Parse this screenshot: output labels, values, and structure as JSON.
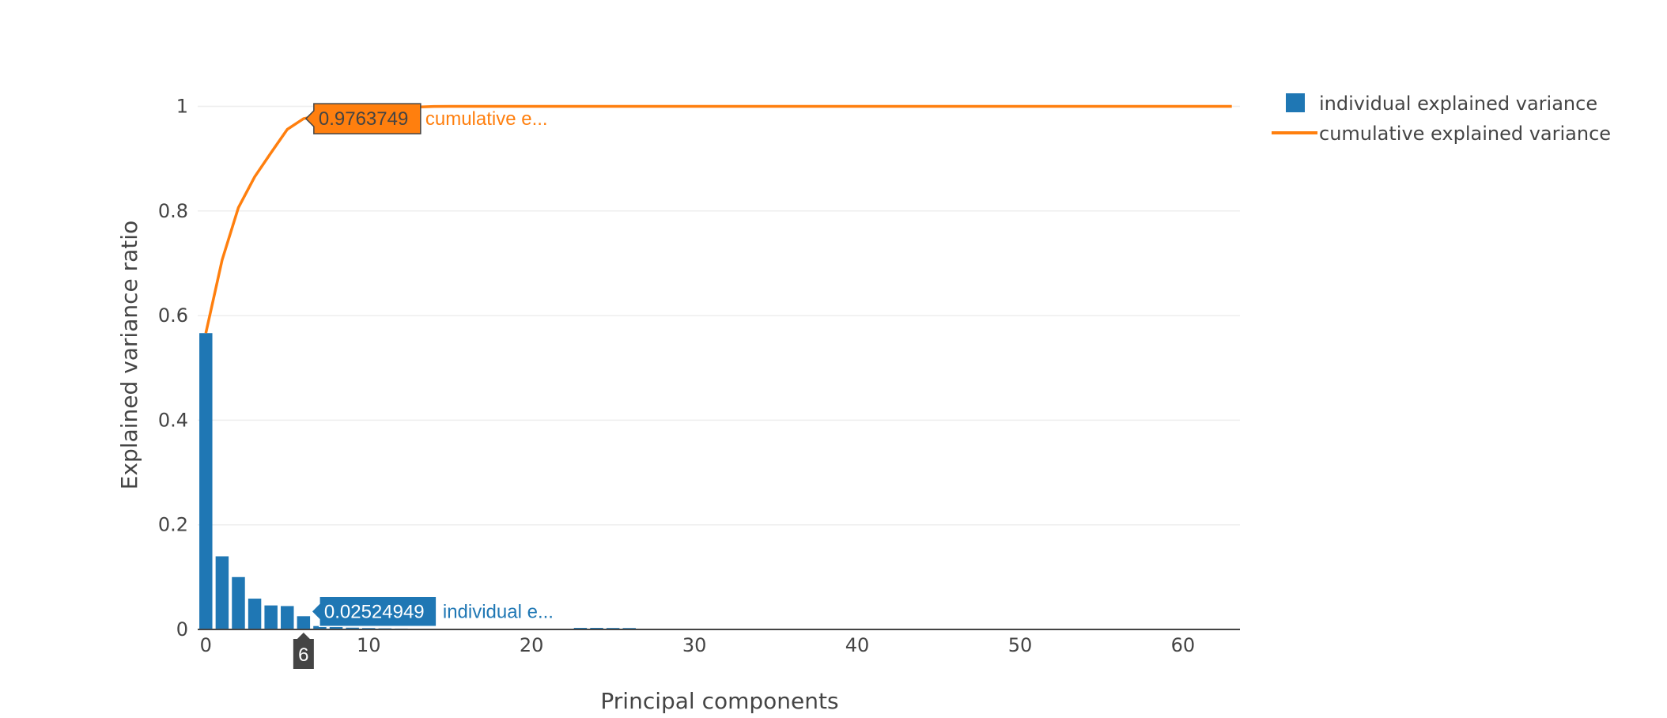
{
  "chart_data": {
    "type": "bar",
    "xlabel": "Principal components",
    "ylabel": "Explained variance ratio",
    "xlim": [
      -0.5,
      63.5
    ],
    "ylim": [
      0,
      1.04
    ],
    "x_ticks": [
      0,
      10,
      20,
      30,
      40,
      50,
      60
    ],
    "x_tick_labels": [
      "0",
      "10",
      "20",
      "30",
      "40",
      "50",
      "60"
    ],
    "y_ticks": [
      0,
      0.2,
      0.4,
      0.6,
      0.8,
      1
    ],
    "y_tick_labels": [
      "0",
      "0.2",
      "0.4",
      "0.6",
      "0.8",
      "1"
    ],
    "grid": true,
    "legend_position": "top-right",
    "colors": {
      "bar": "#1f77b4",
      "line": "#ff7f0e"
    },
    "x": [
      0,
      1,
      2,
      3,
      4,
      5,
      6,
      7,
      8,
      9,
      10,
      11,
      12,
      13,
      14,
      15,
      16,
      17,
      18,
      19,
      20,
      21,
      22,
      23,
      24,
      25,
      26,
      27,
      28,
      29,
      30,
      31,
      32,
      33,
      34,
      35,
      36,
      37,
      38,
      39,
      40,
      41,
      42,
      43,
      44,
      45,
      46,
      47,
      48,
      49,
      50,
      51,
      52,
      53,
      54,
      55,
      56,
      57,
      58,
      59,
      60,
      61,
      62,
      63
    ],
    "series": [
      {
        "name": "individual explained variance",
        "type": "bar",
        "values": [
          0.5665,
          0.1398,
          0.1001,
          0.0589,
          0.0459,
          0.0447,
          0.02524949,
          0.0065,
          0.0045,
          0.0034,
          0.0026,
          0.0021,
          0.0017,
          0.0014,
          0.0012,
          0.001,
          0.0008,
          0.0007,
          0.0006,
          0.0005,
          0.0004,
          0.0004,
          0.0003,
          0.003,
          0.003,
          0.0028,
          0.0027,
          0.0001,
          0.0001,
          0.0001,
          0.0001,
          0.0001,
          0.0001,
          0.0001,
          0.0001,
          0,
          0,
          0,
          0,
          0,
          0,
          0,
          0,
          0,
          0,
          0,
          0,
          0,
          0,
          0,
          0,
          0,
          0,
          0,
          0,
          0,
          0,
          0,
          0,
          0,
          0,
          0,
          0,
          0
        ]
      },
      {
        "name": "cumulative explained variance",
        "type": "line",
        "values": [
          0.5665,
          0.7063,
          0.8064,
          0.8653,
          0.9112,
          0.9559,
          0.9763749,
          0.9829,
          0.9874,
          0.9908,
          0.9934,
          0.9955,
          0.9972,
          0.9986,
          0.9998,
          0.9999,
          1.0,
          1.0,
          1.0,
          1.0,
          1.0,
          1.0,
          1.0,
          1.0,
          1.0,
          1.0,
          1.0,
          1.0,
          1.0,
          1.0,
          1.0,
          1.0,
          1.0,
          1.0,
          1.0,
          1.0,
          1.0,
          1.0,
          1.0,
          1.0,
          1.0,
          1.0,
          1.0,
          1.0,
          1.0,
          1.0,
          1.0,
          1.0,
          1.0,
          1.0,
          1.0,
          1.0,
          1.0,
          1.0,
          1.0,
          1.0,
          1.0,
          1.0,
          1.0,
          1.0,
          1.0,
          1.0,
          1.0,
          1.0
        ]
      }
    ],
    "hover": {
      "x_label": "6",
      "x_value": 6,
      "line_value_label": "0.9763749",
      "line_value": 0.9763749,
      "line_name": "cumulative e...",
      "bar_value_label": "0.02524949",
      "bar_value": 0.02524949,
      "bar_name": "individual e..."
    }
  }
}
